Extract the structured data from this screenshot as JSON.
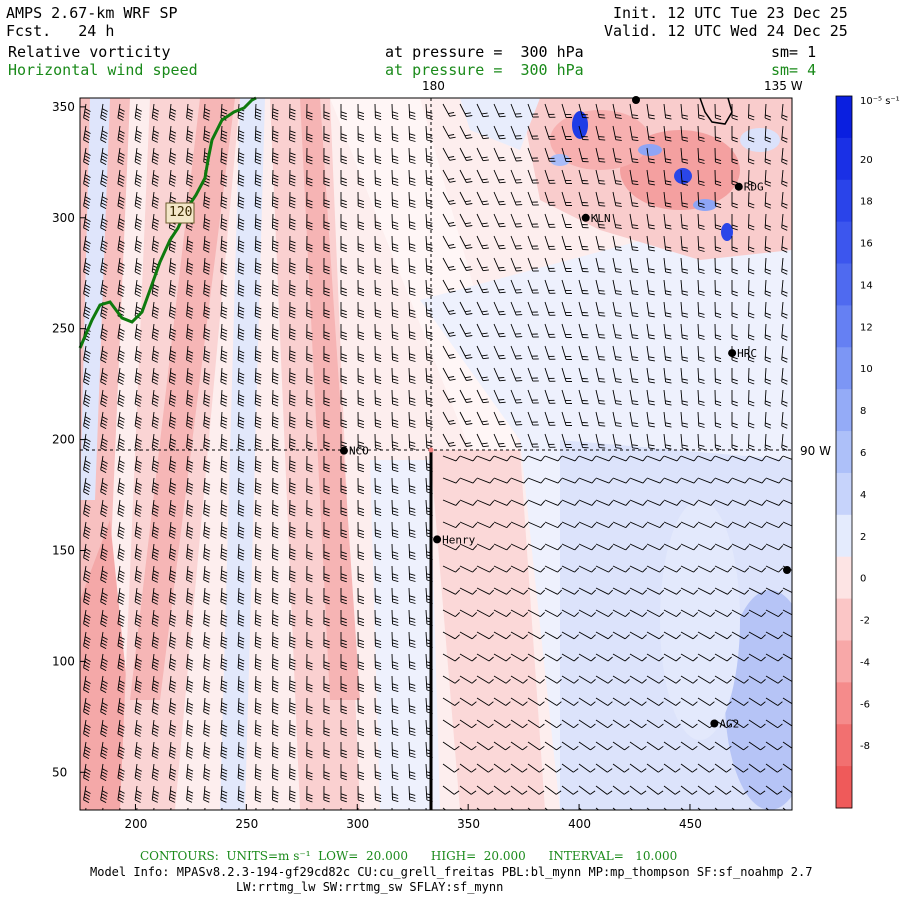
{
  "header": {
    "model": "AMPS 2.67-km WRF SP",
    "fcst": "Fcst.   24 h",
    "init": "Init. 12 UTC Tue 23 Dec 25",
    "valid": "Valid. 12 UTC Wed 24 Dec 25",
    "field1": "Relative vorticity",
    "field1_level": "at pressure =  300 hPa",
    "field1_sm": "sm= 1",
    "field2": "Horizontal wind speed",
    "field2_level": "at pressure =  300 hPa",
    "field2_sm": "sm= 4"
  },
  "colorbar": {
    "units": "10⁻⁵ s⁻¹",
    "ticks": [
      "20",
      "18",
      "16",
      "14",
      "12",
      "10",
      "8",
      "6",
      "4",
      "2",
      "0",
      "-2",
      "-4",
      "-6",
      "-8"
    ],
    "colors": [
      "#0a1fe0",
      "#1a30e6",
      "#2a44ea",
      "#3c56ee",
      "#4f6af0",
      "#6580f3",
      "#7c96f5",
      "#94abf7",
      "#adc0f9",
      "#c6d3fb",
      "#e4ebfd",
      "#fde4e4",
      "#fbc6c6",
      "#f8a8a8",
      "#f58b8b",
      "#f27070",
      "#ef5a5a"
    ]
  },
  "axes": {
    "x_ticks": [
      "200",
      "250",
      "300",
      "350",
      "400",
      "450"
    ],
    "y_ticks": [
      "350",
      "300",
      "250",
      "200",
      "150",
      "100",
      "50"
    ],
    "lon_top_180": "180",
    "lon_top_135w": "135 W",
    "lon_right_90w": "90 W"
  },
  "stations": [
    {
      "name": "RDG",
      "x": 472,
      "y": 314
    },
    {
      "name": "KLN",
      "x": 403,
      "y": 300
    },
    {
      "name": "HRC",
      "x": 469,
      "y": 239
    },
    {
      "name": "NCO",
      "x": 294,
      "y": 195
    },
    {
      "name": "Henry",
      "x": 336,
      "y": 155
    },
    {
      "name": "AG2",
      "x": 461,
      "y": 72
    }
  ],
  "road_label": "120",
  "footer": {
    "contours": "CONTOURS:  UNITS=m s⁻¹  LOW=  20.000      HIGH=  20.000      INTERVAL=   10.000",
    "model_info": "Model Info: MPASv8.2.3-194-gf29cd82c CU:cu_grell_freitas PBL:bl_mynn MP:mp_thompson SF:sf_noahmp 2.7",
    "physics": "LW:rrtmg_lw SW:rrtmg_sw SFLAY:sf_mynn"
  }
}
